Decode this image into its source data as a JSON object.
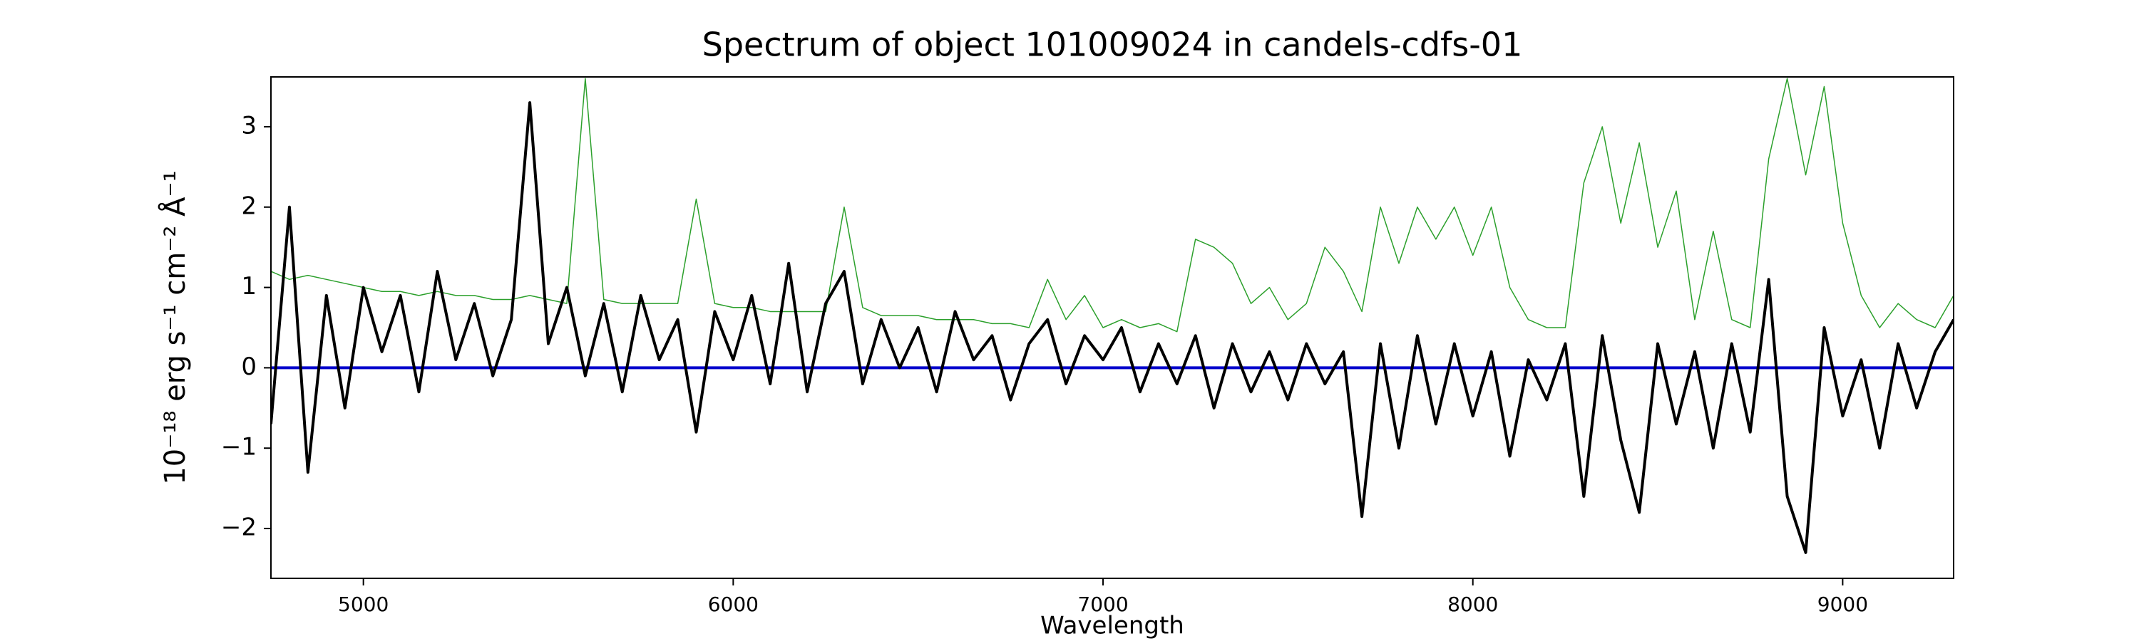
{
  "chart_data": {
    "type": "line",
    "title": "Spectrum of object 101009024 in candels-cdfs-01",
    "xlabel": "Wavelength",
    "ylabel": "10⁻¹⁸ erg s⁻¹ cm⁻² Å⁻¹",
    "x": [
      4750,
      4800,
      4850,
      4900,
      4950,
      5000,
      5050,
      5100,
      5150,
      5200,
      5250,
      5300,
      5350,
      5400,
      5450,
      5500,
      5550,
      5600,
      5650,
      5700,
      5750,
      5800,
      5850,
      5900,
      5950,
      6000,
      6050,
      6100,
      6150,
      6200,
      6250,
      6300,
      6350,
      6400,
      6450,
      6500,
      6550,
      6600,
      6650,
      6700,
      6750,
      6800,
      6850,
      6900,
      6950,
      7000,
      7050,
      7100,
      7150,
      7200,
      7250,
      7300,
      7350,
      7400,
      7450,
      7500,
      7550,
      7600,
      7650,
      7700,
      7750,
      7800,
      7850,
      7900,
      7950,
      8000,
      8050,
      8100,
      8150,
      8200,
      8250,
      8300,
      8350,
      8400,
      8450,
      8500,
      8550,
      8600,
      8650,
      8700,
      8750,
      8800,
      8850,
      8900,
      8950,
      9000,
      9050,
      9100,
      9150,
      9200,
      9250,
      9300
    ],
    "series": [
      {
        "color": "#2ca02c",
        "width": 1.5,
        "values": [
          1.2,
          1.1,
          1.15,
          1.1,
          1.05,
          1.0,
          0.95,
          0.95,
          0.9,
          0.95,
          0.9,
          0.9,
          0.85,
          0.85,
          0.9,
          0.85,
          0.8,
          3.6,
          0.85,
          0.8,
          0.8,
          0.8,
          0.8,
          2.1,
          0.8,
          0.75,
          0.75,
          0.7,
          0.7,
          0.7,
          0.7,
          2.0,
          0.75,
          0.65,
          0.65,
          0.65,
          0.6,
          0.6,
          0.6,
          0.55,
          0.55,
          0.5,
          1.1,
          0.6,
          0.9,
          0.5,
          0.6,
          0.5,
          0.55,
          0.45,
          1.6,
          1.5,
          1.3,
          0.8,
          1.0,
          0.6,
          0.8,
          1.5,
          1.2,
          0.7,
          2.0,
          1.3,
          2.0,
          1.6,
          2.0,
          1.4,
          2.0,
          1.0,
          0.6,
          0.5,
          0.5,
          2.3,
          3.0,
          1.8,
          2.8,
          1.5,
          2.2,
          0.6,
          1.7,
          0.6,
          0.5,
          2.6,
          3.6,
          2.4,
          3.5,
          1.8,
          0.9,
          0.5,
          0.8,
          0.6,
          0.5,
          0.9
        ]
      },
      {
        "color": "#000000",
        "width": 4,
        "values": [
          -0.7,
          2.0,
          -1.3,
          0.9,
          -0.5,
          1.0,
          0.2,
          0.9,
          -0.3,
          1.2,
          0.1,
          0.8,
          -0.1,
          0.6,
          3.3,
          0.3,
          1.0,
          -0.1,
          0.8,
          -0.3,
          0.9,
          0.1,
          0.6,
          -0.8,
          0.7,
          0.1,
          0.9,
          -0.2,
          1.3,
          -0.3,
          0.8,
          1.2,
          -0.2,
          0.6,
          0.0,
          0.5,
          -0.3,
          0.7,
          0.1,
          0.4,
          -0.4,
          0.3,
          0.6,
          -0.2,
          0.4,
          0.1,
          0.5,
          -0.3,
          0.3,
          -0.2,
          0.4,
          -0.5,
          0.3,
          -0.3,
          0.2,
          -0.4,
          0.3,
          -0.2,
          0.2,
          -1.85,
          0.3,
          -1.0,
          0.4,
          -0.7,
          0.3,
          -0.6,
          0.2,
          -1.1,
          0.1,
          -0.4,
          0.3,
          -1.6,
          0.4,
          -0.9,
          -1.8,
          0.3,
          -0.7,
          0.2,
          -1.0,
          0.3,
          -0.8,
          1.1,
          -1.6,
          -2.3,
          0.5,
          -0.6,
          0.1,
          -1.0,
          0.3,
          -0.5,
          0.2,
          0.6
        ]
      }
    ],
    "hlines": [
      {
        "y": 0,
        "color": "#0000cc"
      }
    ],
    "xlim": [
      4750,
      9300
    ],
    "ylim": [
      -2.62,
      3.62
    ],
    "xticks": [
      5000,
      6000,
      7000,
      8000,
      9000
    ],
    "yticks": [
      {
        "value": -2,
        "label": "−2"
      },
      {
        "value": -1,
        "label": "−1"
      },
      0,
      1,
      2,
      3
    ]
  }
}
